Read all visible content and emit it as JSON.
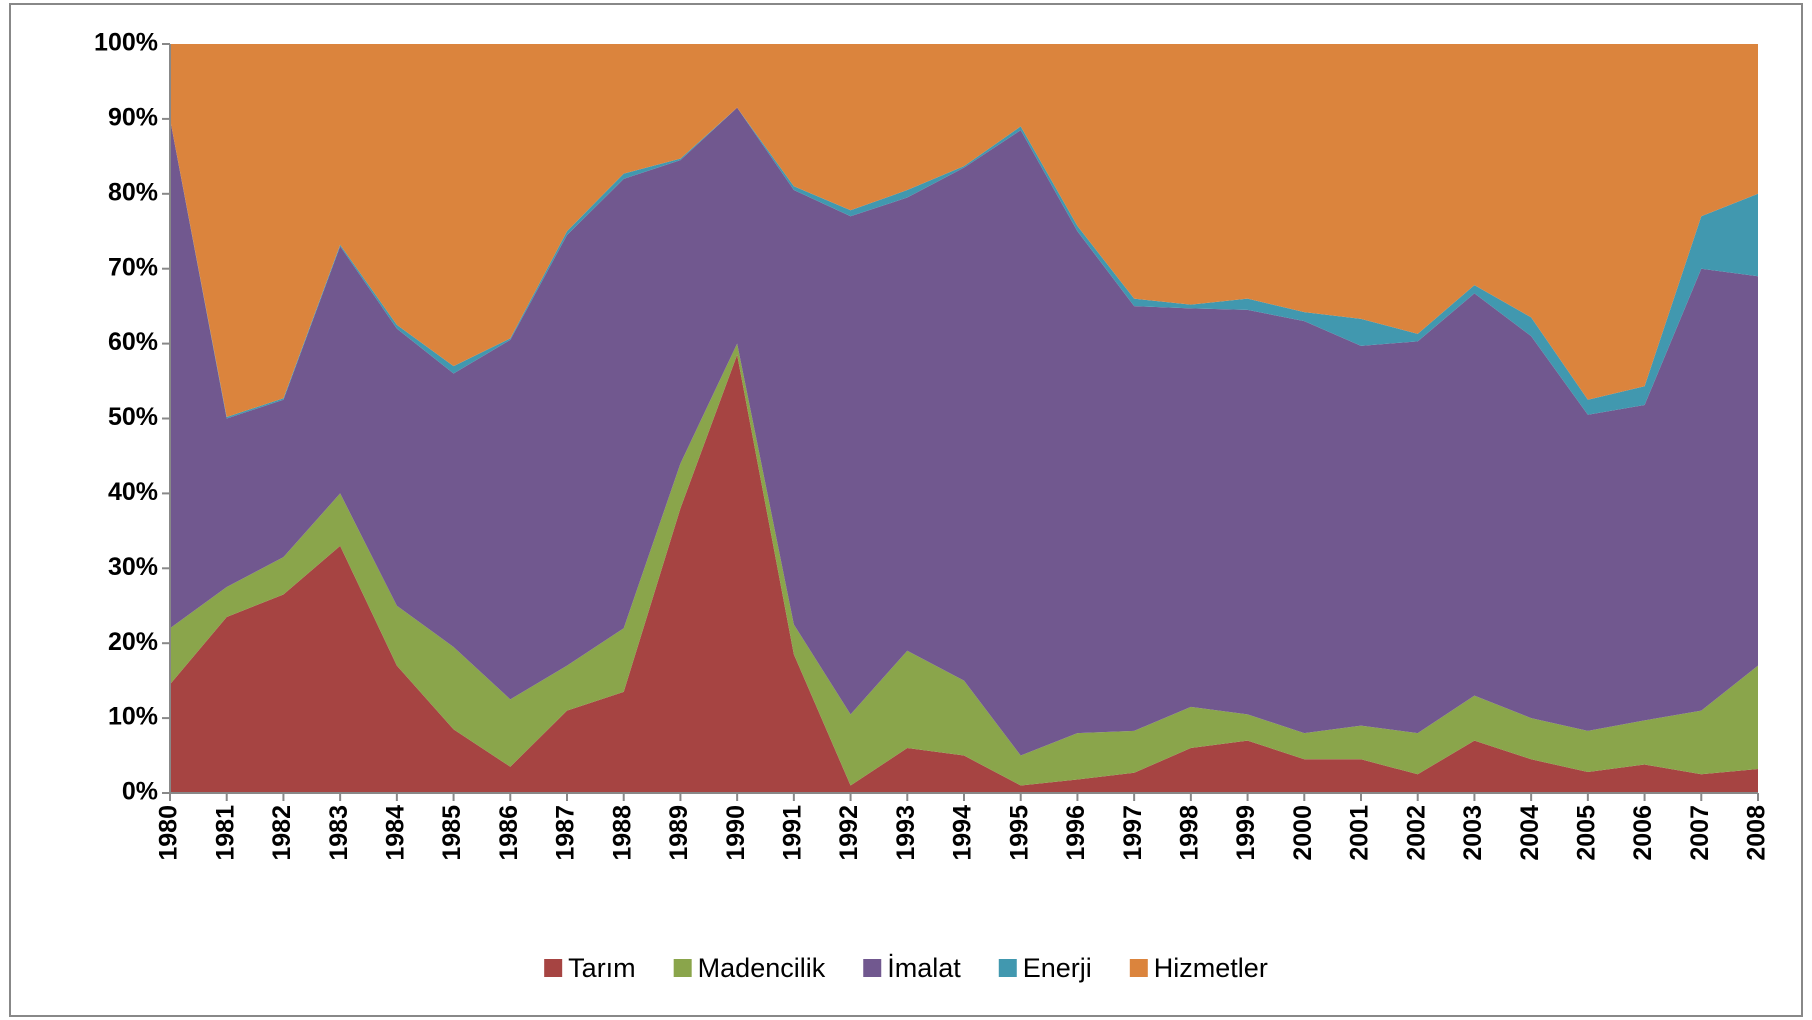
{
  "chart_data": {
    "type": "stacked_area",
    "x": [
      1980,
      1981,
      1982,
      1983,
      1984,
      1985,
      1986,
      1987,
      1988,
      1989,
      1990,
      1991,
      1992,
      1993,
      1994,
      1995,
      1996,
      1997,
      1998,
      1999,
      2000,
      2001,
      2002,
      2003,
      2004,
      2005,
      2006,
      2007,
      2008
    ],
    "xlim": [
      1980,
      2008
    ],
    "xticks": [
      1980,
      1981,
      1982,
      1983,
      1984,
      1985,
      1986,
      1987,
      1988,
      1989,
      1990,
      1991,
      1992,
      1993,
      1994,
      1995,
      1996,
      1997,
      1998,
      1999,
      2000,
      2001,
      2002,
      2003,
      2004,
      2005,
      2006,
      2007,
      2008
    ],
    "ylim": [
      0,
      100
    ],
    "yticks": [
      {
        "value": 0,
        "label": "0%"
      },
      {
        "value": 10,
        "label": "10%"
      },
      {
        "value": 20,
        "label": "20%"
      },
      {
        "value": 30,
        "label": "30%"
      },
      {
        "value": 40,
        "label": "40%"
      },
      {
        "value": 50,
        "label": "50%"
      },
      {
        "value": 60,
        "label": "60%"
      },
      {
        "value": 70,
        "label": "70%"
      },
      {
        "value": 80,
        "label": "80%"
      },
      {
        "value": 90,
        "label": "90%"
      },
      {
        "value": 100,
        "label": "100%"
      }
    ],
    "legend": "bottom",
    "series": [
      {
        "name": "Tarım",
        "color": "#a64442",
        "values": [
          14.5,
          23.5,
          26.5,
          33,
          17,
          8.5,
          3.5,
          11,
          13.5,
          38,
          58.5,
          18.5,
          1,
          6,
          5,
          1,
          1.8,
          2.7,
          6,
          7,
          4.5,
          4.5,
          2.5,
          7,
          4.5,
          2.8,
          3.8,
          2.5,
          3.2
        ]
      },
      {
        "name": "Madencilik",
        "color": "#8aa54b",
        "values": [
          7.5,
          4,
          5,
          7,
          8,
          11,
          9,
          6,
          8.5,
          6,
          1.5,
          4,
          9.5,
          13,
          10,
          4,
          6.2,
          5.6,
          5.5,
          3.5,
          3.5,
          4.5,
          5.5,
          6,
          5.5,
          5.5,
          5.9,
          8.5,
          13.8
        ]
      },
      {
        "name": "İmalat",
        "color": "#71588f",
        "values": [
          68,
          22.5,
          21,
          33,
          37,
          36.5,
          48,
          57.5,
          60,
          40.5,
          31.5,
          58,
          66.5,
          60.5,
          68.5,
          83.5,
          67,
          56.7,
          53.2,
          54,
          55,
          50.7,
          52.3,
          53.7,
          51,
          42.2,
          42.1,
          59,
          52
        ]
      },
      {
        "name": "Enerji",
        "color": "#4198af",
        "values": [
          0,
          0.2,
          0.2,
          0.2,
          0.5,
          1,
          0.2,
          0.5,
          0.7,
          0.2,
          0,
          0.5,
          0.8,
          1,
          0.2,
          0.5,
          0.7,
          1,
          0.5,
          1.5,
          1.2,
          3.6,
          1,
          1.1,
          2.5,
          2,
          2.5,
          7,
          11
        ]
      },
      {
        "name": "Hizmetler",
        "color": "#db843d",
        "values": [
          10,
          49.8,
          47.3,
          26.8,
          37.5,
          43,
          39.3,
          25,
          17.3,
          15.3,
          8.5,
          19,
          22.2,
          19.5,
          16.3,
          11,
          24.3,
          34,
          34.8,
          34,
          35.8,
          36.7,
          38.7,
          32.2,
          36.5,
          47.5,
          45.7,
          23,
          20
        ]
      }
    ]
  }
}
